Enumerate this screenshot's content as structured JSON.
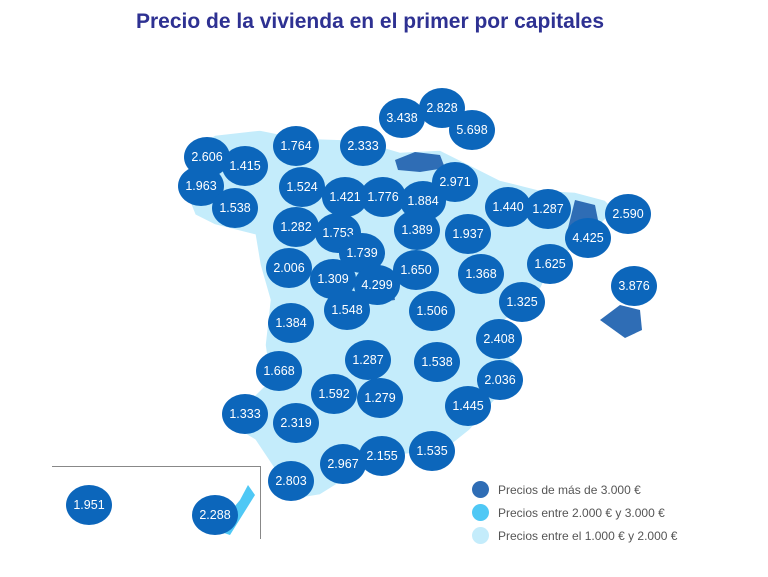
{
  "title": "Precio de la vivienda en el primer por capitales",
  "colors": {
    "high": "#2f6db5",
    "mid": "#4fc8f5",
    "low": "#c4ecfb",
    "bubble": "#0c66bb"
  },
  "prices": [
    "2.606",
    "1.415",
    "1.963",
    "1.538",
    "1.764",
    "2.333",
    "3.438",
    "2.828",
    "5.698",
    "2.971",
    "1.524",
    "1.421",
    "1.776",
    "1.884",
    "1.440",
    "1.287",
    "2.590",
    "4.425",
    "1.282",
    "1.753",
    "1.389",
    "1.937",
    "1.739",
    "2.006",
    "1.309",
    "4.299",
    "1.650",
    "1.368",
    "1.625",
    "3.876",
    "1.548",
    "1.506",
    "1.325",
    "1.384",
    "2.408",
    "1.287",
    "1.538",
    "1.668",
    "2.036",
    "1.592",
    "1.279",
    "1.445",
    "1.333",
    "2.319",
    "2.967",
    "2.155",
    "1.535",
    "2.803",
    "1.951",
    "2.288"
  ],
  "legend": [
    "Precios de más de 3.000 €",
    "Precios entre 2.000 € y 3.000 €",
    "Precios entre el 1.000 € y 2.000 €"
  ]
}
